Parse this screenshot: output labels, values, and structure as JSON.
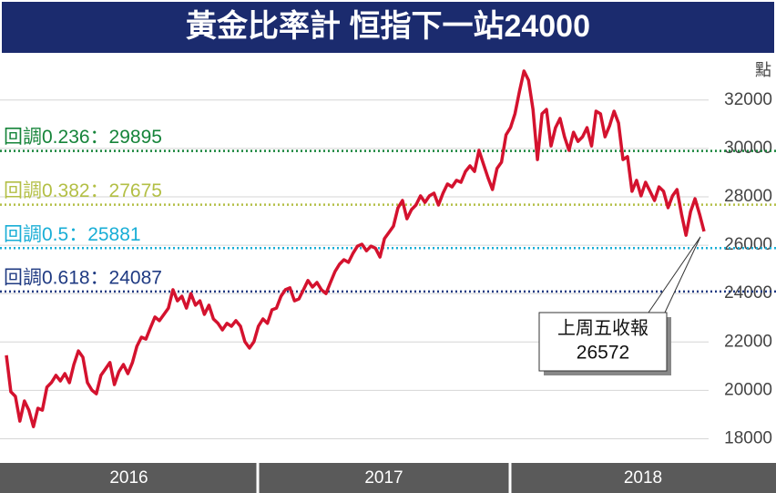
{
  "chart_data": {
    "type": "line",
    "title": "黃金比率計  恒指下一站24000",
    "y_unit": "點",
    "ylim": [
      17000,
      33800
    ],
    "yticks": [
      18000,
      20000,
      22000,
      24000,
      26000,
      28000,
      30000,
      32000
    ],
    "grid": true,
    "periods": [
      "2016",
      "2017",
      "2018"
    ],
    "series": [
      {
        "color": "#d4122e",
        "values": [
          21450,
          19940,
          19750,
          18730,
          19560,
          19180,
          18500,
          19260,
          19180,
          20130,
          20320,
          20620,
          20390,
          20690,
          20320,
          21070,
          21630,
          21370,
          20320,
          20010,
          19860,
          20620,
          20880,
          21150,
          20240,
          20770,
          21070,
          20690,
          21150,
          21820,
          22200,
          22120,
          22580,
          23030,
          22880,
          23140,
          23400,
          24160,
          23700,
          23890,
          23400,
          24000,
          23520,
          23700,
          23140,
          23520,
          22950,
          22770,
          22500,
          22770,
          22650,
          22880,
          22650,
          22010,
          21750,
          22010,
          22650,
          22950,
          22770,
          23330,
          23400,
          23890,
          24160,
          24240,
          23700,
          23780,
          24160,
          24540,
          24270,
          24460,
          24160,
          24000,
          24460,
          24910,
          25210,
          25400,
          25290,
          25660,
          25960,
          26040,
          25770,
          25960,
          25880,
          25510,
          26270,
          26530,
          26790,
          27540,
          27850,
          27090,
          27470,
          27660,
          28040,
          27770,
          28040,
          28150,
          27660,
          28150,
          28530,
          28410,
          28680,
          28600,
          29050,
          29280,
          29050,
          29920,
          29350,
          28790,
          28300,
          29170,
          29430,
          30560,
          30860,
          31430,
          32370,
          33200,
          32820,
          31610,
          29540,
          31430,
          31610,
          30100,
          30860,
          31240,
          30480,
          29920,
          30670,
          30290,
          30480,
          30860,
          30100,
          31540,
          31430,
          30480,
          30930,
          31540,
          31050,
          29540,
          29660,
          28230,
          28680,
          28040,
          28600,
          28230,
          27850,
          28410,
          28230,
          27550,
          28040,
          28300,
          27280,
          26410,
          27390,
          27920,
          27280,
          26572
        ]
      }
    ],
    "levels": [
      {
        "label": "回調0.236：29895",
        "value": 29895,
        "color": "#16843a"
      },
      {
        "label": "回調0.382：27675",
        "value": 27675,
        "color": "#b3bf45"
      },
      {
        "label": "回調0.5：25881",
        "value": 25881,
        "color": "#19aed6"
      },
      {
        "label": "回調0.618：24087",
        "value": 24087,
        "color": "#1f3a82"
      }
    ],
    "annotation": {
      "text": "上周五收報",
      "value": "26572"
    }
  }
}
